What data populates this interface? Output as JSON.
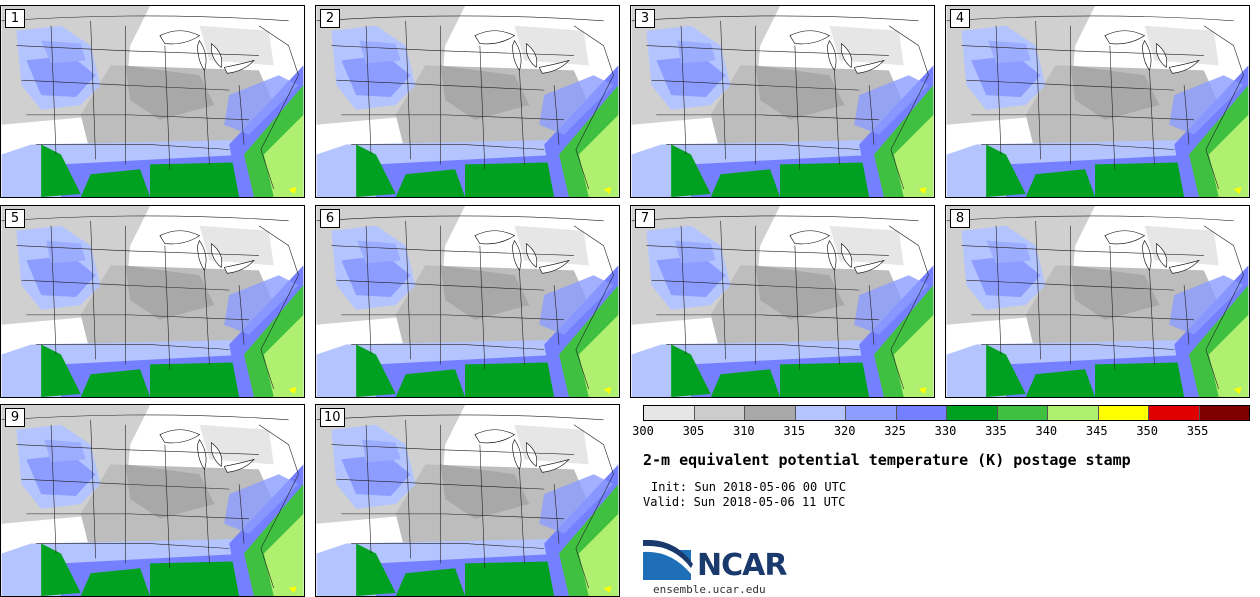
{
  "panels": [
    {
      "label": "1"
    },
    {
      "label": "2"
    },
    {
      "label": "3"
    },
    {
      "label": "4"
    },
    {
      "label": "5"
    },
    {
      "label": "6"
    },
    {
      "label": "7"
    },
    {
      "label": "8"
    },
    {
      "label": "9"
    },
    {
      "label": "10"
    }
  ],
  "colorbar": {
    "colors": [
      "#e6e6e6",
      "#cccccc",
      "#a8a8a8",
      "#b4c4ff",
      "#8c9cff",
      "#7480ff",
      "#00a020",
      "#40c040",
      "#b0f070",
      "#ffff00",
      "#e00000",
      "#800000"
    ],
    "ticks": [
      "300",
      "305",
      "310",
      "315",
      "320",
      "325",
      "330",
      "335",
      "340",
      "345",
      "350",
      "355"
    ]
  },
  "title": "2-m equivalent potential temperature (K) postage stamp",
  "init": "Init: Sun 2018-05-06 00 UTC",
  "valid": "Valid: Sun 2018-05-06 11 UTC",
  "logo": {
    "text": "NCAR",
    "url": "ensemble.ucar.edu",
    "colors": {
      "blue": "#1e6fb8",
      "navy": "#1a3a6e"
    }
  }
}
